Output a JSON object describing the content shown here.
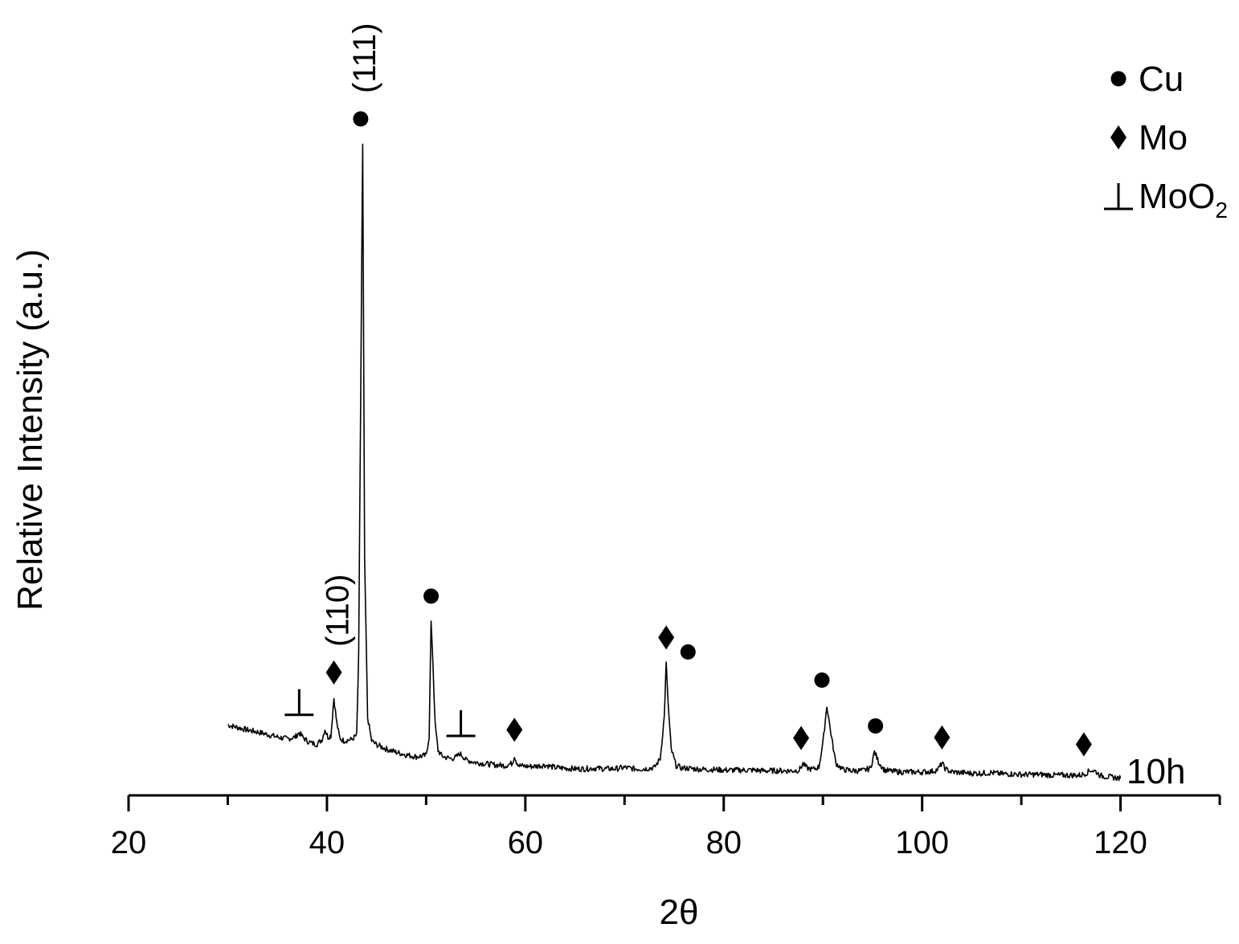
{
  "chart_data": {
    "type": "line",
    "xlabel": "2θ",
    "ylabel": "Relative Intensity (a.u.)",
    "xlim": [
      20,
      130
    ],
    "xticks": [
      20,
      40,
      60,
      80,
      100,
      120
    ],
    "x_minor_step": 10,
    "grid": false,
    "y_ticks_shown": false,
    "series": [
      {
        "name": "10h",
        "color": "#000000",
        "x": [
          30,
          31,
          32,
          33,
          34,
          35,
          36,
          36.8,
          37.2,
          37.6,
          38,
          38.5,
          39,
          39.5,
          39.8,
          40.1,
          40.4,
          40.7,
          41,
          41.3,
          41.7,
          42,
          42.5,
          43,
          43.2,
          43.4,
          43.6,
          43.8,
          44.1,
          44.5,
          45,
          46,
          47,
          48,
          49,
          50,
          50.3,
          50.5,
          50.7,
          50.9,
          51.2,
          51.6,
          52,
          52.5,
          53,
          53.4,
          53.7,
          54,
          54.5,
          55,
          56,
          57,
          58,
          58.7,
          58.9,
          59.1,
          59.4,
          60,
          61,
          62,
          63,
          64,
          65,
          66,
          67,
          68,
          69,
          70,
          71,
          72,
          73,
          73.6,
          74,
          74.2,
          74.4,
          74.7,
          75.2,
          75.8,
          76.3,
          77,
          78,
          79,
          80,
          81,
          82,
          83,
          84,
          85,
          86,
          87,
          87.6,
          88,
          88.4,
          89,
          89.6,
          90,
          90.4,
          90.8,
          91.3,
          92,
          93,
          94,
          94.8,
          95.2,
          95.6,
          96.2,
          97,
          98,
          99,
          100,
          101,
          101.6,
          102,
          102.4,
          103,
          104,
          105,
          106,
          107,
          108,
          109,
          110,
          111,
          112,
          113,
          114,
          115,
          116,
          116.5,
          117,
          117.5,
          118,
          119,
          120
        ],
        "y": [
          8.8,
          8.4,
          8.0,
          7.7,
          7.3,
          6.9,
          6.6,
          6.9,
          7.6,
          6.8,
          6.3,
          5.9,
          5.8,
          6.5,
          8.1,
          6.9,
          7.1,
          13.0,
          9.0,
          6.7,
          6.3,
          6.4,
          6.5,
          7.2,
          20.0,
          60.0,
          100.0,
          35.0,
          10.0,
          6.3,
          5.7,
          5.0,
          4.5,
          4.1,
          3.8,
          4.0,
          7.0,
          25.0,
          18.0,
          9.0,
          4.8,
          3.9,
          3.7,
          3.5,
          3.7,
          4.3,
          3.9,
          3.3,
          3.1,
          2.9,
          2.7,
          2.5,
          2.4,
          2.8,
          4.0,
          3.0,
          2.4,
          2.3,
          2.3,
          2.5,
          2.1,
          2.0,
          1.9,
          1.9,
          2.0,
          1.9,
          1.9,
          2.1,
          1.9,
          1.9,
          2.1,
          3.5,
          10.0,
          18.5,
          12.0,
          5.0,
          2.4,
          2.0,
          2.0,
          1.9,
          1.8,
          1.8,
          1.7,
          1.7,
          1.7,
          1.7,
          1.6,
          1.6,
          1.6,
          1.6,
          1.7,
          2.7,
          2.0,
          1.8,
          2.2,
          6.0,
          11.8,
          7.5,
          2.8,
          1.8,
          1.6,
          1.6,
          2.0,
          4.6,
          3.0,
          1.7,
          1.5,
          1.4,
          1.4,
          1.4,
          1.5,
          1.8,
          2.8,
          1.8,
          1.4,
          1.3,
          1.2,
          1.2,
          1.3,
          1.1,
          1.1,
          1.0,
          1.0,
          1.0,
          0.9,
          0.9,
          0.9,
          0.9,
          1.2,
          1.7,
          1.5,
          0.8,
          0.6,
          0.4
        ]
      }
    ],
    "series_label": "10h",
    "legend": {
      "position": "top-right",
      "entries": [
        {
          "symbol": "circle",
          "label": "Cu"
        },
        {
          "symbol": "diamond",
          "label": "Mo"
        },
        {
          "symbol": "perp",
          "label": "MoO",
          "subscript": "2"
        }
      ]
    },
    "peak_markers": [
      {
        "symbol": "perp",
        "x": 37.2
      },
      {
        "symbol": "diamond",
        "x": 40.7
      },
      {
        "symbol": "circle",
        "x": 43.4
      },
      {
        "symbol": "circle",
        "x": 50.5
      },
      {
        "symbol": "perp",
        "x": 53.5
      },
      {
        "symbol": "diamond",
        "x": 58.9
      },
      {
        "symbol": "diamond",
        "x": 74.2
      },
      {
        "symbol": "circle",
        "x": 76.4
      },
      {
        "symbol": "diamond",
        "x": 87.8
      },
      {
        "symbol": "circle",
        "x": 89.9
      },
      {
        "symbol": "circle",
        "x": 95.3
      },
      {
        "symbol": "diamond",
        "x": 102.0
      },
      {
        "symbol": "diamond",
        "x": 116.3
      }
    ],
    "peak_annotations": [
      {
        "text": "(110)",
        "x": 40.7
      },
      {
        "text": "(111)",
        "x": 43.4
      }
    ]
  }
}
